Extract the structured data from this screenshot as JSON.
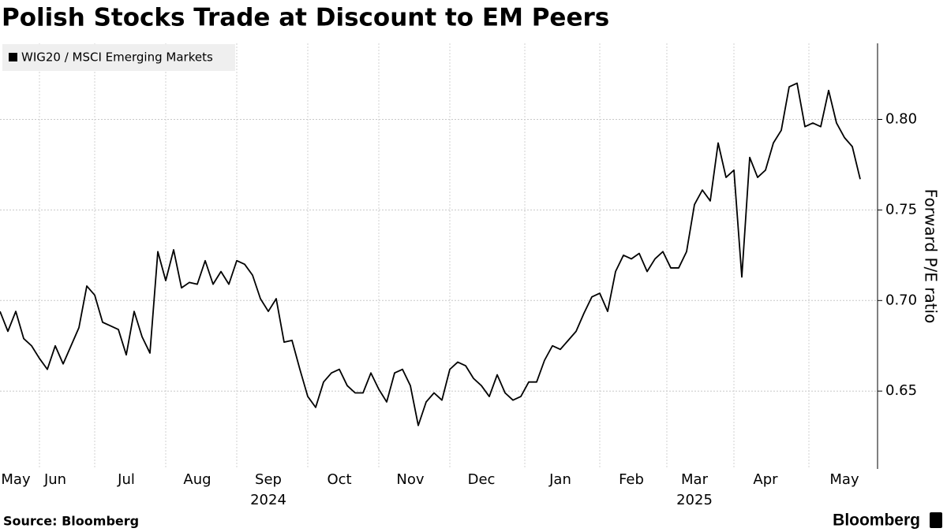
{
  "chart_data": {
    "type": "line",
    "title": "Polish Stocks Trade at Discount to EM Peers",
    "y_axis_label": "Forward P/E ratio",
    "source": "Source: Bloomberg",
    "brand": "Bloomberg",
    "categories": [
      null,
      null,
      "May",
      null,
      null,
      null,
      null,
      "Jun",
      null,
      null,
      null,
      null,
      null,
      null,
      null,
      null,
      "Jul",
      null,
      null,
      null,
      null,
      null,
      null,
      null,
      null,
      "Aug",
      null,
      null,
      null,
      null,
      null,
      null,
      null,
      null,
      "Sep",
      null,
      null,
      null,
      null,
      null,
      null,
      null,
      null,
      "Oct",
      null,
      null,
      null,
      null,
      null,
      null,
      null,
      null,
      "Nov",
      null,
      null,
      null,
      null,
      null,
      null,
      null,
      null,
      "Dec",
      null,
      null,
      null,
      null,
      null,
      null,
      null,
      null,
      null,
      "Jan",
      null,
      null,
      null,
      null,
      null,
      null,
      null,
      null,
      "Feb",
      null,
      null,
      null,
      null,
      null,
      null,
      null,
      "Mar",
      null,
      null,
      null,
      null,
      null,
      null,
      null,
      null,
      "Apr",
      null,
      null,
      null,
      null,
      null,
      null,
      null,
      null,
      null,
      "May",
      null,
      null
    ],
    "year_labels": [
      null,
      null,
      null,
      null,
      null,
      null,
      null,
      null,
      null,
      null,
      null,
      null,
      null,
      null,
      null,
      null,
      null,
      null,
      null,
      null,
      null,
      null,
      null,
      null,
      null,
      null,
      null,
      null,
      null,
      null,
      null,
      null,
      null,
      null,
      "2024",
      null,
      null,
      null,
      null,
      null,
      null,
      null,
      null,
      null,
      null,
      null,
      null,
      null,
      null,
      null,
      null,
      null,
      null,
      null,
      null,
      null,
      null,
      null,
      null,
      null,
      null,
      null,
      null,
      null,
      null,
      null,
      null,
      null,
      null,
      null,
      null,
      null,
      null,
      null,
      null,
      null,
      null,
      null,
      null,
      null,
      null,
      null,
      null,
      null,
      null,
      null,
      null,
      null,
      "2025",
      null,
      null,
      null,
      null,
      null,
      null,
      null,
      null,
      null,
      null,
      null,
      null,
      null,
      null,
      null,
      null,
      null,
      null,
      null,
      null,
      null
    ],
    "series": [
      {
        "name": "WIG20 / MSCI Emerging Markets",
        "color": "#000000",
        "values": [
          0.694,
          0.683,
          0.694,
          0.679,
          0.675,
          0.668,
          0.662,
          0.675,
          0.665,
          0.675,
          0.685,
          0.708,
          0.703,
          0.688,
          0.686,
          0.684,
          0.67,
          0.694,
          0.68,
          0.671,
          0.727,
          0.711,
          0.728,
          0.707,
          0.71,
          0.709,
          0.722,
          0.709,
          0.716,
          0.709,
          0.722,
          0.72,
          0.714,
          0.701,
          0.694,
          0.701,
          0.677,
          0.678,
          0.662,
          0.647,
          0.641,
          0.655,
          0.66,
          0.662,
          0.653,
          0.649,
          0.649,
          0.66,
          0.651,
          0.644,
          0.66,
          0.662,
          0.653,
          0.631,
          0.644,
          0.649,
          0.645,
          0.662,
          0.666,
          0.664,
          0.657,
          0.653,
          0.647,
          0.659,
          0.649,
          0.645,
          0.647,
          0.655,
          0.655,
          0.667,
          0.675,
          0.673,
          0.678,
          0.683,
          0.693,
          0.702,
          0.704,
          0.694,
          0.716,
          0.725,
          0.723,
          0.726,
          0.716,
          0.723,
          0.727,
          0.718,
          0.718,
          0.727,
          0.753,
          0.761,
          0.755,
          0.787,
          0.768,
          0.772,
          0.713,
          0.779,
          0.768,
          0.772,
          0.787,
          0.794,
          0.818,
          0.82,
          0.796,
          0.798,
          0.796,
          0.816,
          0.798,
          0.79,
          0.785,
          0.767
        ]
      }
    ],
    "ylim": [
      0.607,
      0.842
    ],
    "yticks": [
      0.65,
      {
        "value": 0.7,
        "label": "0.70"
      },
      0.75,
      {
        "value": 0.8,
        "label": "0.80"
      }
    ],
    "grid": true,
    "legend": "top-left"
  }
}
